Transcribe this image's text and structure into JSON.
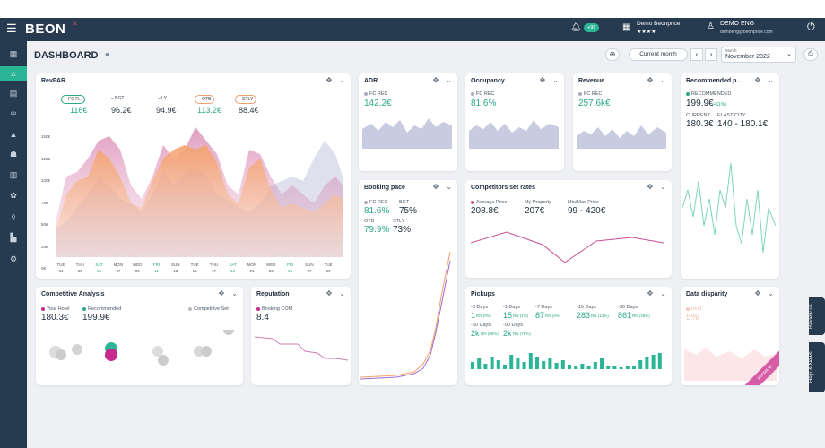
{
  "topbar": {
    "logo": "BEON",
    "notif_count": "+99",
    "hotel_name": "Demo Beonprice",
    "hotel_stars": "★★★★",
    "user_name": "DEMO ENG",
    "user_email": "demoeng@beonprice.com"
  },
  "header": {
    "title": "DASHBOARD",
    "period_button": "Current month",
    "month_label": "Month",
    "month_value": "November 2022"
  },
  "revpar": {
    "title": "RevPAR",
    "legend": [
      {
        "label": "FC R..",
        "value": "116€"
      },
      {
        "label": "BGT...",
        "value": "96.2€"
      },
      {
        "label": "LY",
        "value": "94.9€"
      },
      {
        "label": "OTB",
        "value": "113.2€"
      },
      {
        "label": "STLY",
        "value": "88.4€"
      }
    ],
    "y_ticks": [
      "150€",
      "125€",
      "100€",
      "75€",
      "50€",
      "25€",
      "0€"
    ],
    "days": [
      [
        "TUE",
        "01"
      ],
      [
        "THU",
        "03"
      ],
      [
        "SAT",
        "05"
      ],
      [
        "MON",
        "07"
      ],
      [
        "WED",
        "09"
      ],
      [
        "FRI",
        "11"
      ],
      [
        "SUN",
        "13"
      ],
      [
        "TUE",
        "15"
      ],
      [
        "THU",
        "17"
      ],
      [
        "SAT",
        "19"
      ],
      [
        "MON",
        "21"
      ],
      [
        "WED",
        "23"
      ],
      [
        "FRI",
        "25"
      ],
      [
        "SUN",
        "27"
      ],
      [
        "TUE",
        "29"
      ]
    ]
  },
  "adr": {
    "title": "ADR",
    "label": "FC REC",
    "value": "142.2€"
  },
  "occupancy": {
    "title": "Occupancy",
    "label": "FC REC",
    "value": "81.6%"
  },
  "revenue": {
    "title": "Revenue",
    "label": "FC REC",
    "value": "257.6k€"
  },
  "recommended": {
    "title": "Recommended p...",
    "label": "RECOMMENDED",
    "value": "199.9€",
    "change": "(+11%)",
    "current_label": "CURRENT",
    "current_value": "180.3€",
    "elasticity_label": "ELASTICITY",
    "elasticity_value": "140 - 180.1€"
  },
  "booking_pace": {
    "title": "Booking pace",
    "fc_label": "FC REC",
    "fc_value": "81.6%",
    "bgt_label": "BGT",
    "bgt_value": "75%",
    "otb_label": "OTB",
    "otb_value": "79.9%",
    "stly_label": "STLY",
    "stly_value": "73%"
  },
  "competitors": {
    "title": "Competitors set rates",
    "avg_label": "Average Price",
    "avg_value": "208.8€",
    "my_label": "My Property",
    "my_value": "207€",
    "mm_label": "Min/Max Price",
    "mm_value": "99 - 420€"
  },
  "competitive": {
    "title": "Competitive Analysis",
    "your_label": "Your Hotel",
    "your_value": "180.3€",
    "rec_label": "Recommended",
    "rec_value": "199.9€",
    "set_label": "Competitive Set"
  },
  "reputation": {
    "title": "Reputation",
    "label": "Booking COM",
    "value": "8.4"
  },
  "pickups": {
    "title": "Pickups",
    "items": [
      {
        "label": "-0 Days",
        "value": "1",
        "unit": "RN (0%)"
      },
      {
        "label": "-1 Days",
        "value": "15",
        "unit": "RN (1%)"
      },
      {
        "label": "-7 Days",
        "value": "87",
        "unit": "RN (4%)"
      },
      {
        "label": "-15 Days",
        "value": "283",
        "unit": "RN (13%)"
      },
      {
        "label": "-30 Days",
        "value": "861",
        "unit": "RN (39%)"
      },
      {
        "label": "-60 Days",
        "value": "2k",
        "unit": "RN (68%)"
      },
      {
        "label": "-90 Days",
        "value": "2k",
        "unit": "RN (76%)"
      }
    ]
  },
  "disparity": {
    "title": "Data disparity",
    "label": "(rec)",
    "value": "5%",
    "badge": "PREMIUM"
  },
  "sidetabs": {
    "review": "Review us",
    "help": "Help & News"
  },
  "colors": {
    "navy": "#263b50",
    "teal": "#2bb596",
    "orange": "#f4a06a",
    "pink": "#c8508f",
    "lavender": "#b8bcd8"
  }
}
